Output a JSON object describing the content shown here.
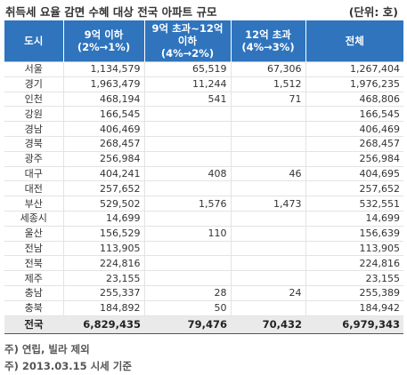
{
  "title": "취득세 요율 감면 수혜 대상 전국 아파트 규모",
  "unit": "(단위: 호)",
  "headers": {
    "region": "도시",
    "col1": {
      "line1": "9억 이하",
      "line2": "(2%→1%)"
    },
    "col2": {
      "line1": "9억 초과~12억",
      "line2": "이하",
      "line3": "(4%→2%)"
    },
    "col3": {
      "line1": "12억 초과",
      "line2": "(4%→3%)"
    },
    "total": "전체"
  },
  "rows": [
    {
      "city": "서울",
      "c1": "1,134,579",
      "c2": "65,519",
      "c3": "67,306",
      "total": "1,267,404"
    },
    {
      "city": "경기",
      "c1": "1,963,479",
      "c2": "11,244",
      "c3": "1,512",
      "total": "1,976,235"
    },
    {
      "city": "인천",
      "c1": "468,194",
      "c2": "541",
      "c3": "71",
      "total": "468,806"
    },
    {
      "city": "강원",
      "c1": "166,545",
      "c2": "",
      "c3": "",
      "total": "166,545"
    },
    {
      "city": "경남",
      "c1": "406,469",
      "c2": "",
      "c3": "",
      "total": "406,469"
    },
    {
      "city": "경북",
      "c1": "268,457",
      "c2": "",
      "c3": "",
      "total": "268,457"
    },
    {
      "city": "광주",
      "c1": "256,984",
      "c2": "",
      "c3": "",
      "total": "256,984"
    },
    {
      "city": "대구",
      "c1": "404,241",
      "c2": "408",
      "c3": "46",
      "total": "404,695"
    },
    {
      "city": "대전",
      "c1": "257,652",
      "c2": "",
      "c3": "",
      "total": "257,652"
    },
    {
      "city": "부산",
      "c1": "529,502",
      "c2": "1,576",
      "c3": "1,473",
      "total": "532,551"
    },
    {
      "city": "세종시",
      "c1": "14,699",
      "c2": "",
      "c3": "",
      "total": "14,699"
    },
    {
      "city": "울산",
      "c1": "156,529",
      "c2": "110",
      "c3": "",
      "total": "156,639"
    },
    {
      "city": "전남",
      "c1": "113,905",
      "c2": "",
      "c3": "",
      "total": "113,905"
    },
    {
      "city": "전북",
      "c1": "224,816",
      "c2": "",
      "c3": "",
      "total": "224,816"
    },
    {
      "city": "제주",
      "c1": "23,155",
      "c2": "",
      "c3": "",
      "total": "23,155"
    },
    {
      "city": "충남",
      "c1": "255,337",
      "c2": "28",
      "c3": "24",
      "total": "255,389"
    },
    {
      "city": "충북",
      "c1": "184,892",
      "c2": "50",
      "c3": "",
      "total": "184,942"
    }
  ],
  "totals": {
    "city": "전국",
    "c1": "6,829,435",
    "c2": "79,476",
    "c3": "70,432",
    "total": "6,979,343"
  },
  "notes": [
    "주) 연립, 빌라 제외",
    "주) 2013.03.15 시세 기준"
  ],
  "colors": {
    "header_bg": "#2f74bd",
    "total_bg": "#eaeaea"
  }
}
